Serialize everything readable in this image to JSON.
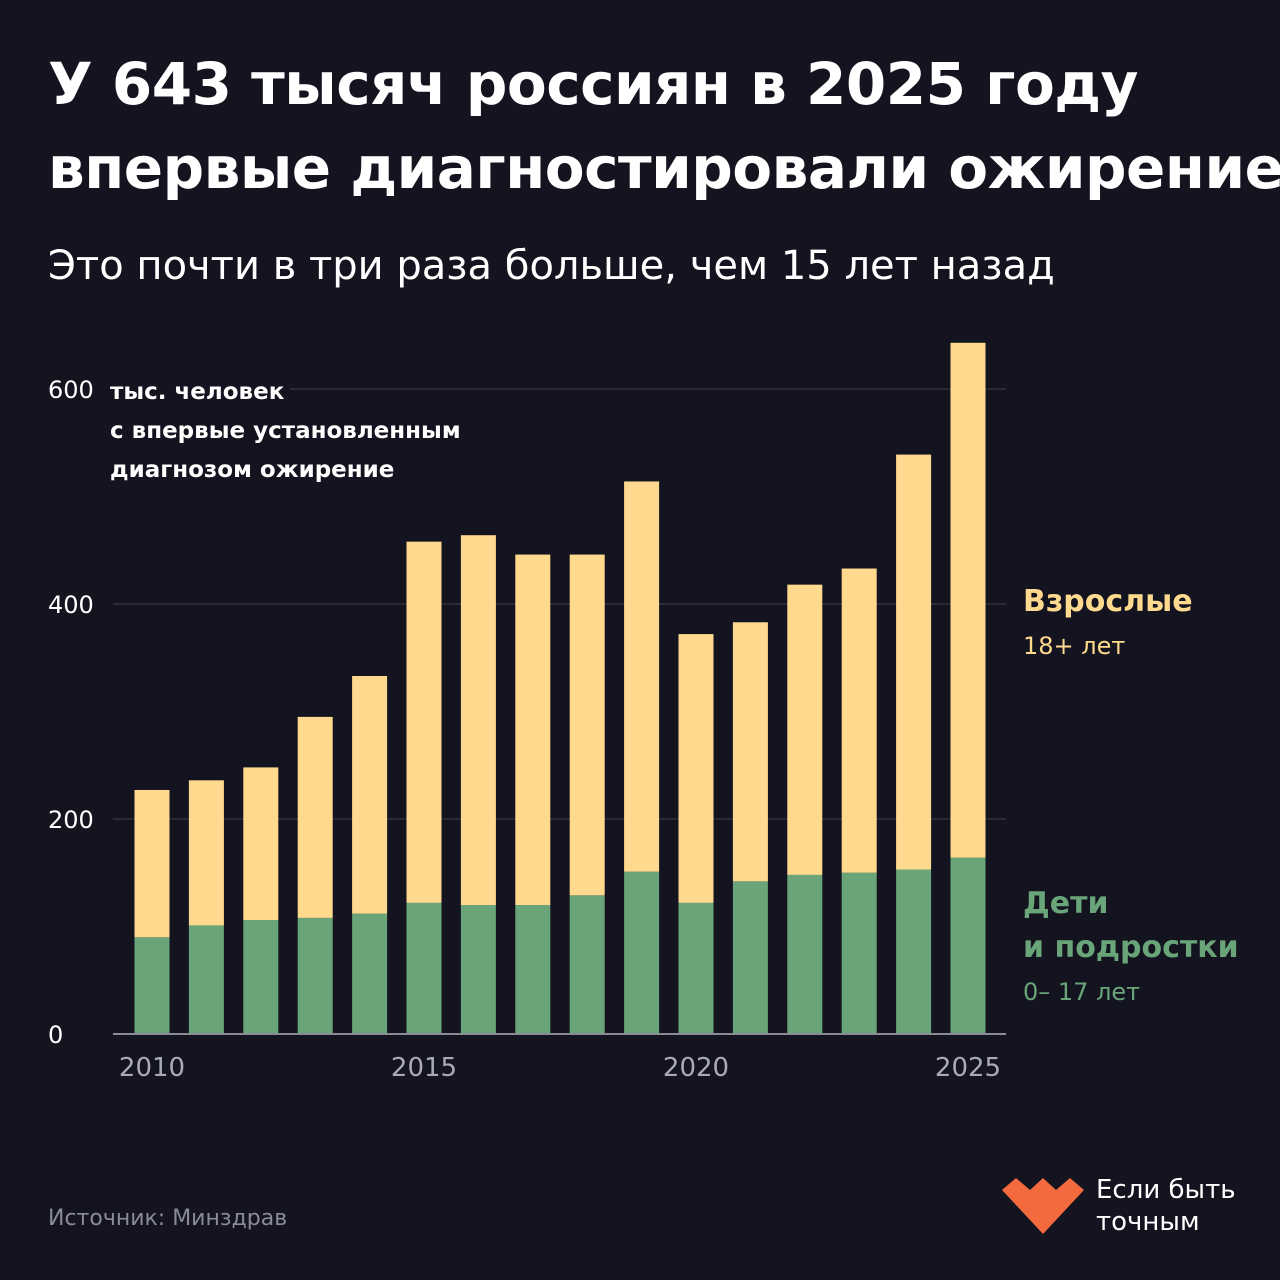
{
  "header": {
    "title_line1": "У 643 тысяч россиян в 2025 году",
    "title_line2": "впервые диагностировали ожирение",
    "subtitle": "Это почти в три раза больше, чем 15 лет назад"
  },
  "chart_data": {
    "type": "bar",
    "stacked": true,
    "x": [
      2010,
      2011,
      2012,
      2013,
      2014,
      2015,
      2016,
      2017,
      2018,
      2019,
      2020,
      2021,
      2022,
      2023,
      2024,
      2025
    ],
    "x_tick_labels": [
      "2010",
      "2015",
      "2020",
      "2025"
    ],
    "y_tick_labels": [
      "0",
      "200",
      "400",
      "600"
    ],
    "y_ticks": [
      0,
      200,
      400,
      600
    ],
    "ylim": [
      0,
      643
    ],
    "ylabel_line1": "тыс. человек",
    "ylabel_line2": "с впервые установленным",
    "ylabel_line3": "диагнозом ожирение",
    "grid": true,
    "series": [
      {
        "name": "Дети и подростки",
        "age": "0– 17 лет",
        "color": "#6aa57a",
        "values": [
          90,
          101,
          106,
          108,
          112,
          122,
          120,
          120,
          129,
          151,
          122,
          142,
          148,
          150,
          153,
          164
        ]
      },
      {
        "name": "Взрослые",
        "age": "18+ лет",
        "color": "#ffd98e",
        "values": [
          137,
          135,
          142,
          187,
          221,
          336,
          344,
          326,
          317,
          363,
          250,
          241,
          270,
          283,
          386,
          479
        ]
      }
    ]
  },
  "legend": {
    "adults_name": "Взрослые",
    "adults_age": "18+ лет",
    "kids_name_line1": "Дети",
    "kids_name_line2": "и подростки",
    "kids_age": "0– 17 лет"
  },
  "footer": {
    "source": "Источник: Минздрав",
    "brand_line1": "Если быть",
    "brand_line2": "точным"
  },
  "colors": {
    "background": "#13141f",
    "adults": "#ffd98e",
    "kids": "#6aa57a",
    "brand": "#f26a3d"
  }
}
